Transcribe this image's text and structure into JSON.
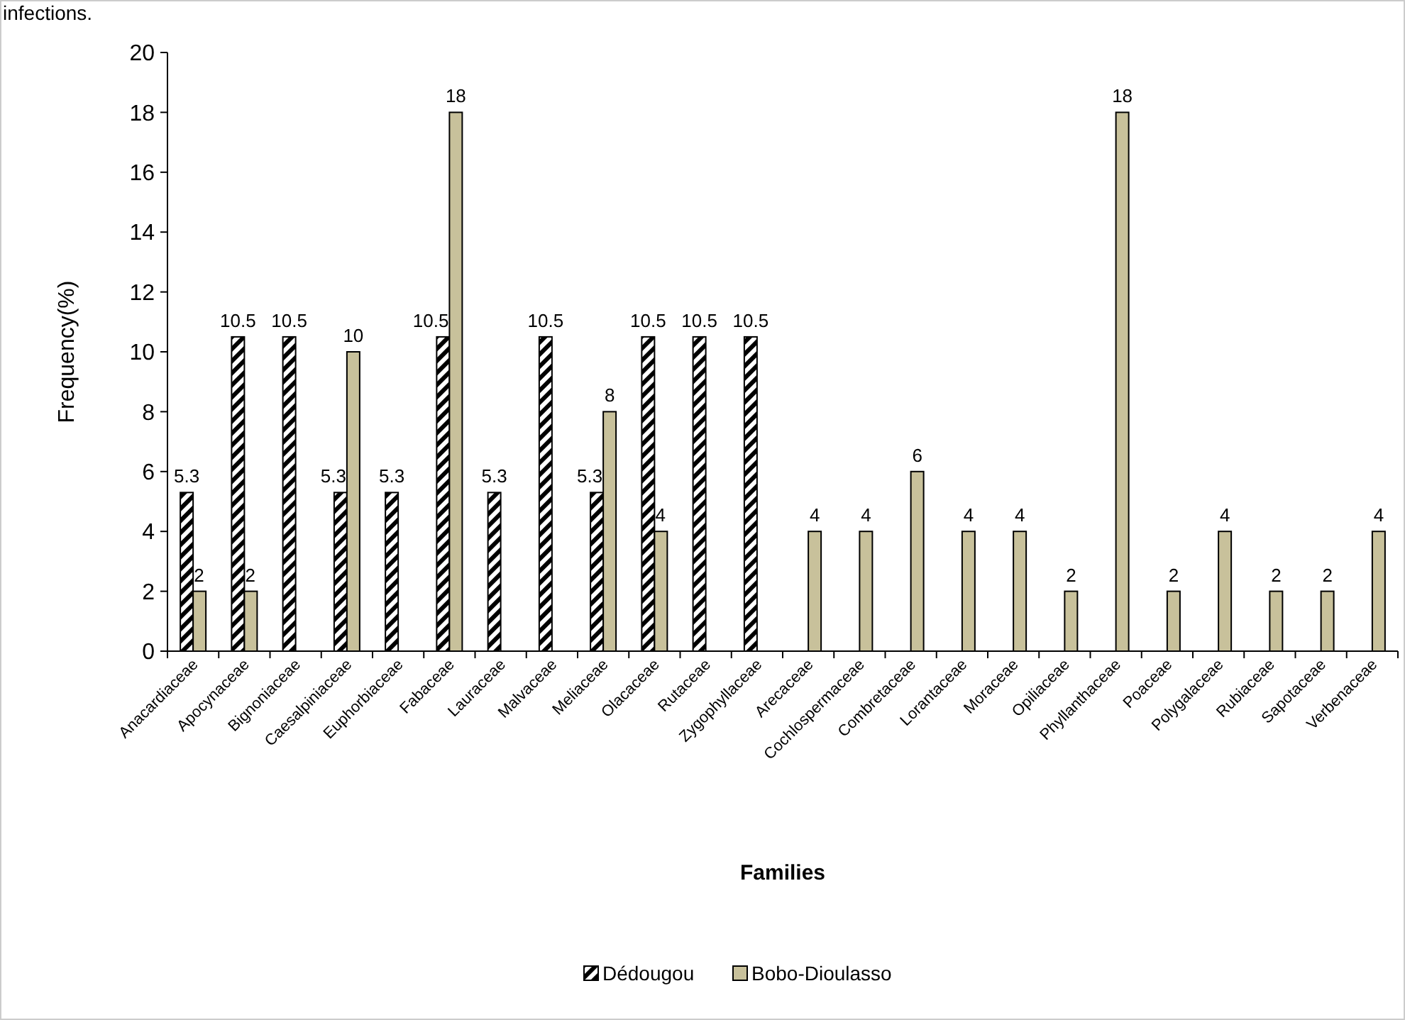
{
  "chart_data": {
    "type": "bar",
    "xlabel": "Families",
    "ylabel": "Frequency(%)",
    "annotations": [
      "infections."
    ],
    "categories": [
      "Anacardiaceae",
      "Apocynaceae",
      "Bignoniaceae",
      "Caesalpiniaceae",
      "Euphorbiaceae",
      "Fabaceae",
      "Lauraceae",
      "Malvaceae",
      "Meliaceae",
      "Olacaceae",
      "Rutaceae",
      "Zygophyllaceae",
      "Arecaceae",
      "Cochlospermaceae",
      "Combretaceae",
      "Lorantaceae",
      "Moraceae",
      "Opiliaceae",
      "Phyllanthaceae",
      "Poaceae",
      "Polygalaceae",
      "Rubiaceae",
      "Sapotaceae",
      "Verbenaceae"
    ],
    "series": [
      {
        "name": "Dédougou",
        "color": "#000000",
        "values": [
          5.3,
          10.5,
          10.5,
          5.3,
          5.3,
          10.5,
          5.3,
          10.5,
          5.3,
          10.5,
          10.5,
          10.5,
          null,
          null,
          null,
          null,
          null,
          null,
          null,
          null,
          null,
          null,
          null,
          null
        ]
      },
      {
        "name": "Bobo-Dioulasso",
        "color": "#c8c19b",
        "values": [
          2,
          2,
          null,
          10,
          null,
          18,
          null,
          null,
          8,
          4,
          null,
          null,
          4,
          4,
          6,
          4,
          4,
          2,
          18,
          2,
          4,
          2,
          2,
          4
        ]
      }
    ],
    "ylim": [
      0,
      20
    ],
    "yticks": [
      0,
      2,
      4,
      6,
      8,
      10,
      12,
      14,
      16,
      18,
      20
    ],
    "grid": false,
    "legend": "bottom",
    "data_labels": true
  }
}
